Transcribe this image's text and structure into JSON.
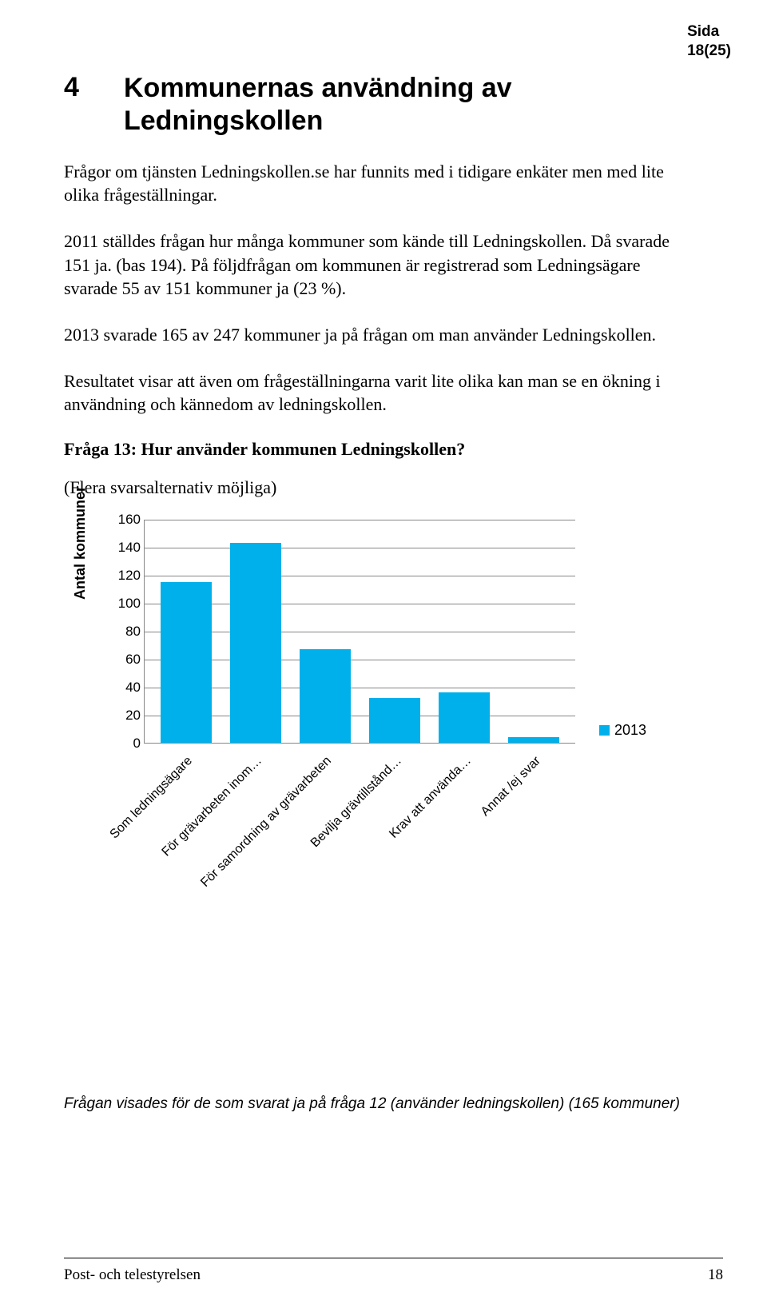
{
  "header": {
    "side_label": "Sida",
    "page_indicator": "18(25)"
  },
  "section": {
    "number": "4",
    "title": "Kommunernas användning av Ledningskollen"
  },
  "paragraphs": {
    "p1": "Frågor om tjänsten Ledningskollen.se har funnits med i tidigare enkäter men med lite olika frågeställningar.",
    "p2": "2011 ställdes frågan hur många kommuner som kände till Ledningskollen. Då svarade 151 ja. (bas 194). På följdfrågan om kommunen är registrerad som Ledningsägare svarade 55 av 151 kommuner ja (23 %).",
    "p3": "2013 svarade 165 av 247 kommuner ja på frågan om man använder Ledningskollen.",
    "p4": "Resultatet visar att även om frågeställningarna varit lite olika kan man se en ökning i användning och kännedom av ledningskollen."
  },
  "question": {
    "heading": "Fråga 13: Hur använder kommunen Ledningskollen?",
    "sub": "(Flera svarsalternativ möjliga)"
  },
  "chart": {
    "type": "bar",
    "y_label": "Antal kommuner",
    "y_max": 160,
    "y_ticks": [
      "0",
      "20",
      "40",
      "60",
      "80",
      "100",
      "120",
      "140",
      "160"
    ],
    "categories": [
      "Som ledningsägare",
      "För grävarbeten inom…",
      "För samordning av grävarbeten",
      "Bevilja grävtillstånd…",
      "Krav att använda…",
      "Annat /ej svar"
    ],
    "values": [
      115,
      143,
      67,
      32,
      36,
      4
    ],
    "bar_color": "#00b0eb",
    "grid_color": "#888888",
    "background_color": "#ffffff",
    "legend_label": "2013",
    "legend_color": "#00b0eb",
    "label_fontsize": 16,
    "tick_fontsize": 17
  },
  "footnote": "Frågan visades för de som svarat ja på fråga 12 (använder ledningskollen) (165 kommuner)",
  "footer": {
    "org": "Post- och telestyrelsen",
    "page_num": "18"
  }
}
